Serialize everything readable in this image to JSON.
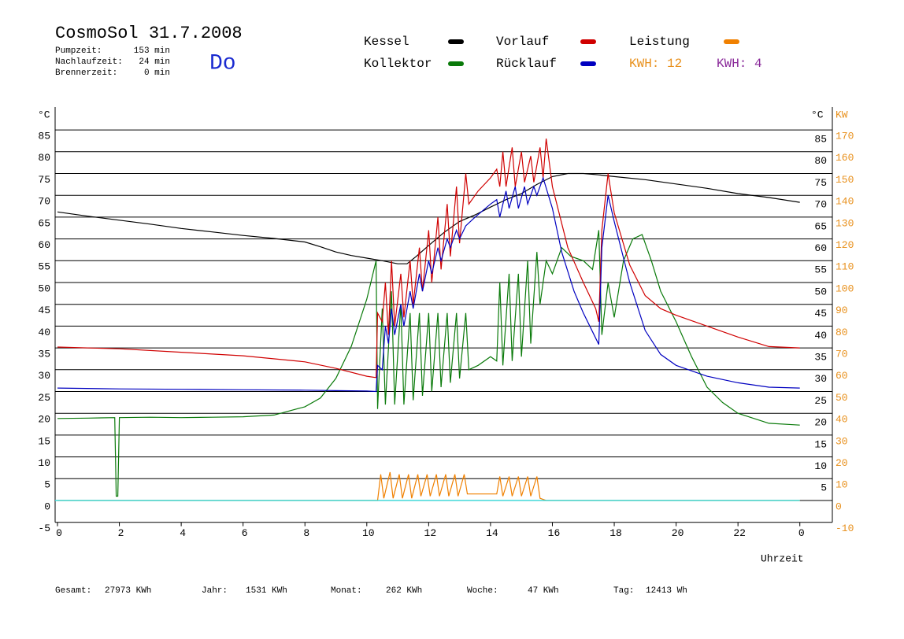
{
  "chart_data": {
    "type": "line",
    "title": "CosmoSol 31.7.2008",
    "day": "Do",
    "info": [
      {
        "label": "Pumpzeit:",
        "value": "153 min"
      },
      {
        "label": "Nachlaufzeit:",
        "value": "24 min"
      },
      {
        "label": "Brennerzeit:",
        "value": "0 min"
      }
    ],
    "annotations": [
      {
        "text": "KWH: 12",
        "color": "#e8901c"
      },
      {
        "text": "KWH: 4",
        "color": "#8a2a9a"
      }
    ],
    "y_label": "°C",
    "y2_label": "°C",
    "y2_unit": "KW",
    "x_label": "Uhrzeit",
    "xlim": [
      0,
      25
    ],
    "xticks": [
      0,
      2,
      4,
      6,
      8,
      10,
      12,
      14,
      16,
      18,
      20,
      22,
      {
        "value": 24,
        "label": "0"
      }
    ],
    "ylim": [
      -5,
      90
    ],
    "yticks": [
      -5,
      0,
      5,
      10,
      15,
      20,
      25,
      30,
      35,
      40,
      45,
      50,
      55,
      60,
      65,
      70,
      75,
      80,
      85
    ],
    "y2lim": [
      -10,
      180
    ],
    "y2ticks": [
      -10,
      0,
      10,
      20,
      30,
      40,
      50,
      60,
      70,
      80,
      90,
      100,
      110,
      120,
      130,
      140,
      150,
      160,
      170
    ],
    "grid": true,
    "series": [
      {
        "name": "Kessel",
        "color": "#000000",
        "x": [
          0,
          1,
          2,
          3,
          4,
          5,
          6,
          7,
          8,
          8.5,
          9,
          9.5,
          10,
          10.5,
          11,
          11.3,
          11.6,
          12,
          12.5,
          13,
          13.5,
          14,
          14.5,
          15,
          15.5,
          16,
          16.5,
          17,
          17.5,
          18,
          19,
          20,
          21,
          22,
          23,
          24
        ],
        "values": [
          66.2,
          65.2,
          64.3,
          63.4,
          62.4,
          61.6,
          60.8,
          60.1,
          59.3,
          58.2,
          57.0,
          56.2,
          55.6,
          55.0,
          54.3,
          54.3,
          56.0,
          58.5,
          61.5,
          64.0,
          65.5,
          67.3,
          69.0,
          70.4,
          72.5,
          74.3,
          75.0,
          75.0,
          74.7,
          74.3,
          73.6,
          72.6,
          71.6,
          70.4,
          69.5,
          68.4
        ]
      },
      {
        "name": "Kollektor",
        "color": "#0a7a0a",
        "x": [
          0,
          1,
          1.85,
          1.9,
          1.95,
          2.0,
          3,
          4,
          5,
          6,
          7,
          8,
          8.5,
          9,
          9.5,
          10,
          10.3,
          10.35,
          10.5,
          10.6,
          10.8,
          10.9,
          11.1,
          11.2,
          11.4,
          11.5,
          11.7,
          11.8,
          12.0,
          12.1,
          12.3,
          12.4,
          12.6,
          12.7,
          12.9,
          13.0,
          13.2,
          13.3,
          13.6,
          14.0,
          14.2,
          14.3,
          14.4,
          14.6,
          14.7,
          14.9,
          15.0,
          15.2,
          15.3,
          15.5,
          15.6,
          15.8,
          16.0,
          16.3,
          16.6,
          17.0,
          17.3,
          17.5,
          17.6,
          17.8,
          18.0,
          18.3,
          18.6,
          18.9,
          19.2,
          19.5,
          20,
          20.5,
          21,
          21.5,
          22,
          23,
          24
        ],
        "values": [
          18.8,
          18.9,
          19.0,
          1,
          1,
          19.0,
          19.1,
          19.0,
          19.1,
          19.2,
          19.6,
          21.5,
          23.5,
          28,
          35.4,
          46.2,
          55,
          21,
          44,
          22,
          48,
          22,
          45,
          22,
          43,
          23,
          43,
          24,
          43,
          25,
          43,
          26,
          43,
          27,
          43,
          28,
          43,
          30,
          31,
          33,
          32,
          50,
          31,
          52,
          32,
          52,
          33,
          55,
          36,
          57,
          45,
          55,
          52,
          58,
          56,
          55,
          53,
          62,
          38,
          50,
          42,
          55,
          60,
          61,
          55,
          48,
          41,
          33,
          26,
          22.5,
          20,
          17.7,
          17.3
        ]
      },
      {
        "name": "Vorlauf",
        "color": "#d00000",
        "x": [
          0,
          2,
          4,
          6,
          8,
          9,
          10,
          10.3,
          10.35,
          10.5,
          10.6,
          10.7,
          10.8,
          10.9,
          11.1,
          11.2,
          11.4,
          11.5,
          11.7,
          11.8,
          12.0,
          12.1,
          12.3,
          12.4,
          12.6,
          12.7,
          12.9,
          13.0,
          13.2,
          13.3,
          13.6,
          14.0,
          14.2,
          14.3,
          14.4,
          14.5,
          14.7,
          14.8,
          15.0,
          15.1,
          15.3,
          15.4,
          15.6,
          15.7,
          15.8,
          16.0,
          16.5,
          17.0,
          17.4,
          17.5,
          17.6,
          17.8,
          18.0,
          18.5,
          19.0,
          19.5,
          20,
          21,
          22,
          23,
          24
        ],
        "values": [
          35.2,
          34.8,
          34.0,
          33.2,
          31.8,
          30.3,
          28.5,
          28.2,
          43,
          41,
          50,
          38,
          55,
          40,
          52,
          42,
          55,
          45,
          58,
          48,
          62,
          50,
          65,
          53,
          68,
          56,
          72,
          59,
          75,
          68,
          71,
          74,
          76,
          72,
          80,
          72,
          81,
          72,
          80,
          73,
          79,
          73,
          81,
          74,
          83,
          72,
          58,
          50,
          44,
          41,
          62,
          75,
          66,
          54,
          47,
          44,
          42.5,
          40,
          37.5,
          35.3,
          35
        ]
      },
      {
        "name": "Rücklauf",
        "color": "#0000c0",
        "x": [
          0,
          2,
          4,
          6,
          8,
          9,
          10,
          10.3,
          10.35,
          10.5,
          10.6,
          10.7,
          10.8,
          10.9,
          11.1,
          11.2,
          11.4,
          11.5,
          11.7,
          11.8,
          12.0,
          12.1,
          12.3,
          12.4,
          12.6,
          12.7,
          12.9,
          13.0,
          13.2,
          13.5,
          14.0,
          14.2,
          14.3,
          14.5,
          14.6,
          14.8,
          14.9,
          15.1,
          15.2,
          15.4,
          15.5,
          15.7,
          16.0,
          16.3,
          16.7,
          17.0,
          17.5,
          17.6,
          17.8,
          18.0,
          18.5,
          19,
          19.5,
          20,
          21,
          22,
          23,
          24
        ],
        "values": [
          25.8,
          25.6,
          25.5,
          25.4,
          25.3,
          25.2,
          25.1,
          25.0,
          31,
          30,
          40,
          36,
          44,
          38,
          45,
          40,
          48,
          44,
          52,
          48,
          55,
          52,
          58,
          55,
          60,
          58,
          62,
          60,
          63,
          65,
          68,
          69,
          65,
          71,
          67,
          72,
          67,
          72,
          68,
          72,
          70,
          74,
          67,
          57,
          48,
          43,
          35.8,
          58,
          70,
          64,
          50,
          39,
          33.5,
          31,
          28.5,
          27,
          26,
          25.8
        ]
      },
      {
        "name": "Leistung",
        "color": "#f08000",
        "axis": "y2",
        "x": [
          0,
          10.3,
          10.35,
          10.45,
          10.55,
          10.75,
          10.85,
          11.05,
          11.15,
          11.35,
          11.45,
          11.65,
          11.75,
          11.95,
          12.05,
          12.25,
          12.35,
          12.55,
          12.65,
          12.85,
          12.95,
          13.15,
          13.25,
          14.0,
          14.2,
          14.3,
          14.4,
          14.6,
          14.7,
          14.9,
          15.0,
          15.2,
          15.3,
          15.5,
          15.6,
          15.8,
          24
        ],
        "values": [
          0,
          0,
          0,
          12,
          1,
          13,
          1,
          12,
          1,
          12,
          1,
          12,
          2,
          12,
          2,
          12,
          2,
          12,
          2,
          12,
          2,
          12,
          3,
          3,
          3,
          11,
          2,
          11,
          2,
          11,
          2,
          11,
          2,
          11,
          1,
          0,
          0
        ]
      }
    ],
    "footer": [
      {
        "label": "Gesamt:",
        "value": "27973 KWh"
      },
      {
        "label": "Jahr:",
        "value": "1531 KWh"
      },
      {
        "label": "Monat:",
        "value": "262 KWh"
      },
      {
        "label": "Woche:",
        "value": "47 KWh"
      },
      {
        "label": "Tag:",
        "value": "12413 Wh"
      }
    ]
  }
}
